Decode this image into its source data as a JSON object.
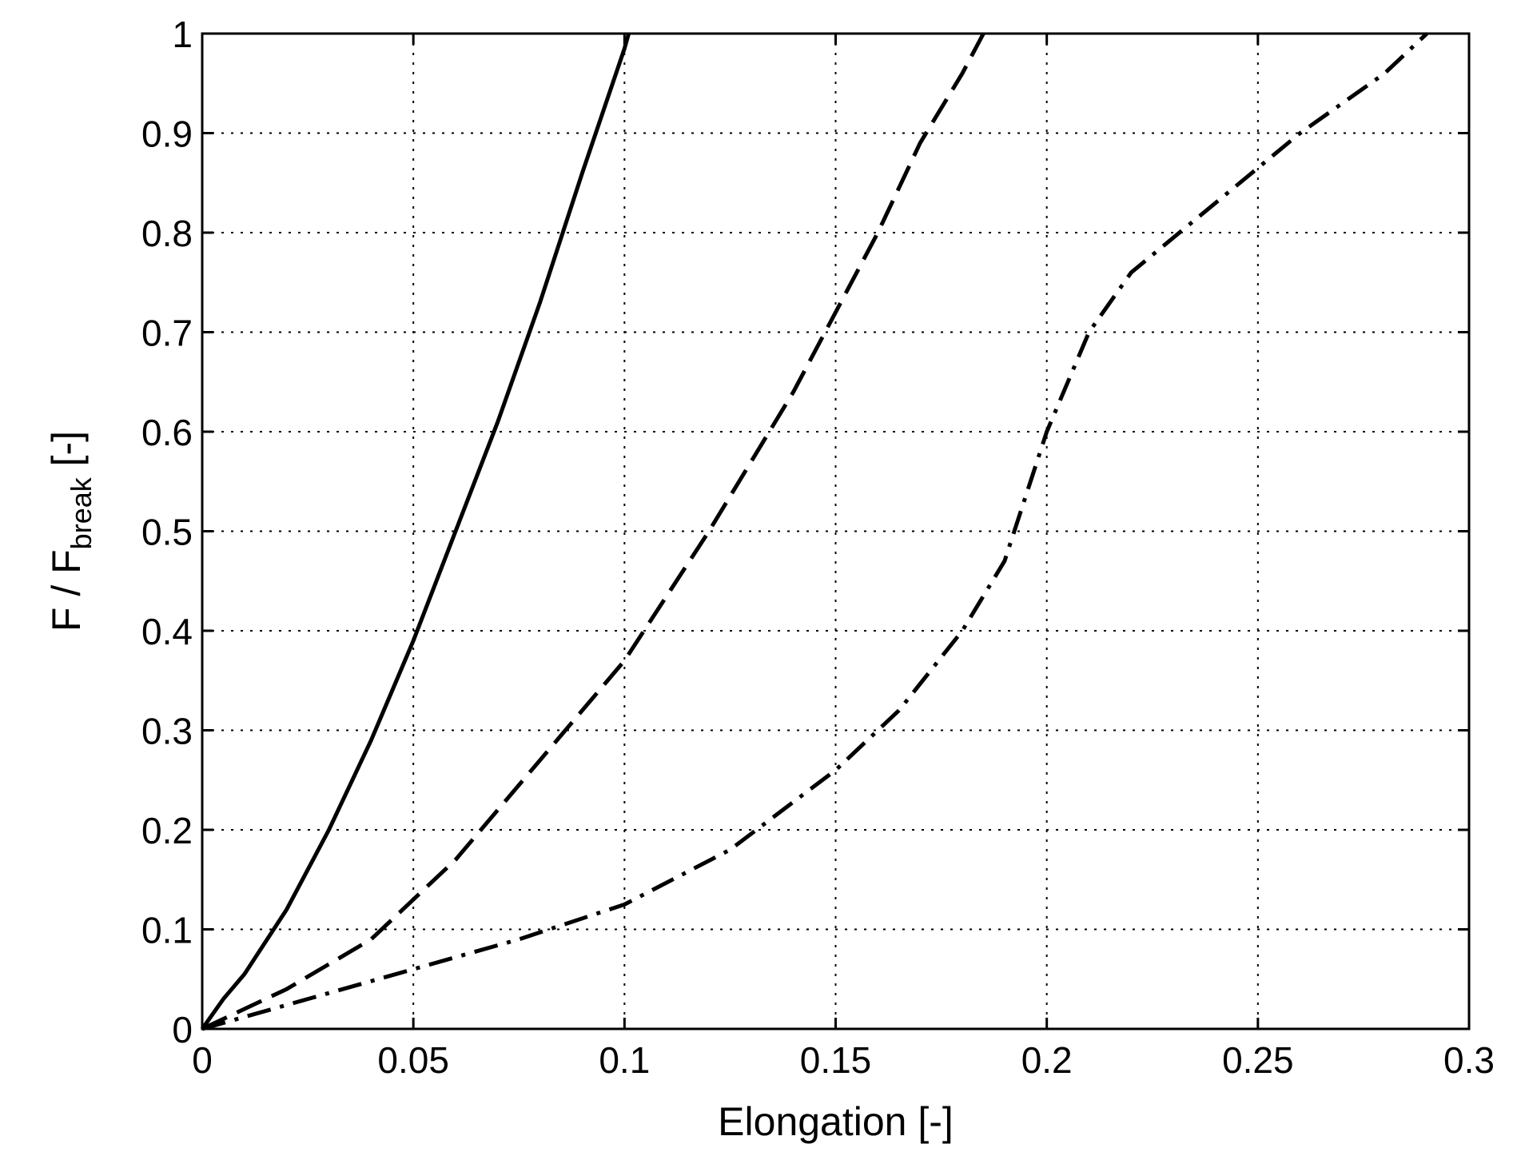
{
  "chart_data": {
    "type": "line",
    "title": "",
    "xlabel": "Elongation [-]",
    "ylabel": {
      "prefix": "F / F",
      "subscript": "break",
      "suffix": " [-]"
    },
    "xlim": [
      0,
      0.3
    ],
    "ylim": [
      0,
      1
    ],
    "xticks": [
      "0",
      "0.05",
      "0.1",
      "0.15",
      "0.2",
      "0.25",
      "0.3"
    ],
    "yticks": [
      "0",
      "0.1",
      "0.2",
      "0.3",
      "0.4",
      "0.5",
      "0.6",
      "0.7",
      "0.8",
      "0.9",
      "1"
    ],
    "grid": true,
    "legend": "none",
    "series": [
      {
        "style": "solid",
        "x": [
          0,
          0.005,
          0.01,
          0.02,
          0.03,
          0.04,
          0.05,
          0.06,
          0.07,
          0.08,
          0.09,
          0.1,
          0.101
        ],
        "y": [
          0,
          0.03,
          0.055,
          0.12,
          0.2,
          0.29,
          0.39,
          0.5,
          0.61,
          0.73,
          0.86,
          0.985,
          1.0
        ]
      },
      {
        "style": "dashed",
        "x": [
          0,
          0.02,
          0.04,
          0.06,
          0.08,
          0.1,
          0.12,
          0.14,
          0.16,
          0.17,
          0.18,
          0.185
        ],
        "y": [
          0,
          0.04,
          0.09,
          0.17,
          0.27,
          0.37,
          0.5,
          0.64,
          0.8,
          0.89,
          0.96,
          1.0
        ]
      },
      {
        "style": "dashdot",
        "x": [
          0,
          0.025,
          0.05,
          0.075,
          0.1,
          0.125,
          0.15,
          0.165,
          0.18,
          0.19,
          0.2,
          0.21,
          0.22,
          0.24,
          0.26,
          0.28,
          0.29
        ],
        "y": [
          0,
          0.03,
          0.06,
          0.09,
          0.125,
          0.18,
          0.26,
          0.32,
          0.4,
          0.47,
          0.6,
          0.7,
          0.76,
          0.83,
          0.9,
          0.96,
          1.0
        ]
      }
    ]
  }
}
